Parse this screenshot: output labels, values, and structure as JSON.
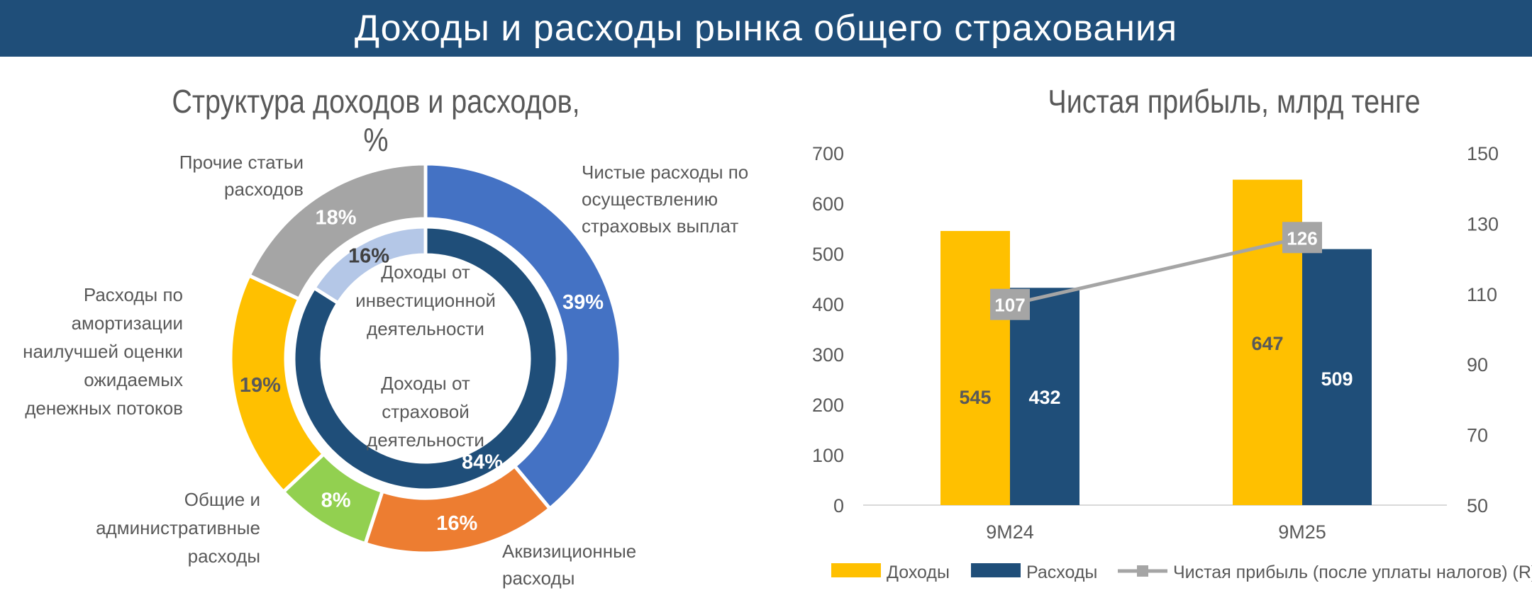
{
  "header": {
    "title": "Доходы и расходы рынка общего страхования"
  },
  "colors": {
    "blue": "#4472c4",
    "orange": "#ed7d31",
    "green": "#92d050",
    "yellow": "#ffc000",
    "gray": "#a5a5a5",
    "navy": "#1f4e79",
    "light_blue": "#b4c7e7"
  },
  "chart_data": [
    {
      "type": "pie",
      "title": "Структура доходов и расходов, %",
      "series": [
        {
          "name": "",
          "ring": "outer",
          "slices": [
            {
              "label": "Чистые расходы по осуществлению страховых выплат",
              "value": 39,
              "value_label": "39%",
              "color": "#4472c4"
            },
            {
              "label": "Аквизиционные расходы",
              "value": 16,
              "value_label": "16%",
              "color": "#ed7d31"
            },
            {
              "label": "Общие и административные расходы",
              "value": 8,
              "value_label": "8%",
              "color": "#92d050"
            },
            {
              "label": "Расходы по амортизации наилучшей оценки ожидаемых денежных потоков",
              "value": 19,
              "value_label": "19%",
              "color": "#ffc000"
            },
            {
              "label": "Прочие статьи расходов",
              "value": 18,
              "value_label": "18%",
              "color": "#a5a5a5"
            }
          ]
        },
        {
          "name": "",
          "ring": "inner",
          "slices": [
            {
              "label": "Доходы от страховой деятельности",
              "value": 84,
              "value_label": "84%",
              "color": "#1f4e79"
            },
            {
              "label": "Доходы от инвестиционной деятельности",
              "value": 16,
              "value_label": "16%",
              "color": "#b4c7e7"
            }
          ]
        }
      ],
      "outer_labels": [
        {
          "lines": [
            "Чистые расходы по",
            "осуществлению",
            "страховых выплат"
          ]
        },
        {
          "lines": [
            "Аквизиционные",
            "расходы"
          ]
        },
        {
          "lines": [
            "Общие и",
            "административные",
            "расходы"
          ]
        },
        {
          "lines": [
            "Расходы по",
            "амортизации",
            "наилучшей оценки",
            "ожидаемых",
            "денежных потоков"
          ]
        },
        {
          "lines": [
            "Прочие статьи",
            "расходов"
          ]
        }
      ],
      "center_labels": [
        {
          "lines": [
            "Доходы от",
            "инвестиционной",
            "деятельности"
          ]
        },
        {
          "lines": [
            "Доходы от",
            "страховой",
            "деятельности"
          ]
        }
      ]
    },
    {
      "type": "bar",
      "title": "Чистая прибыль, млрд тенге",
      "categories": [
        "9M24",
        "9M25"
      ],
      "series": [
        {
          "name": "Доходы",
          "type": "bar",
          "axis": "left",
          "values": [
            545,
            647
          ],
          "labels": [
            "545",
            "647"
          ],
          "color": "#ffc000"
        },
        {
          "name": "Расходы",
          "type": "bar",
          "axis": "left",
          "values": [
            432,
            509
          ],
          "labels": [
            "432",
            "509"
          ],
          "color": "#1f4e79"
        },
        {
          "name": "Чистая прибыль (после уплаты налогов) (R)",
          "type": "line",
          "axis": "right",
          "values": [
            107,
            126
          ],
          "labels": [
            "107",
            "126"
          ],
          "color": "#a5a5a5"
        }
      ],
      "left_axis": {
        "min": 0,
        "max": 700,
        "ticks": [
          "0",
          "100",
          "200",
          "300",
          "400",
          "500",
          "600",
          "700"
        ]
      },
      "right_axis": {
        "min": 50,
        "max": 150,
        "ticks": [
          "50",
          "70",
          "90",
          "110",
          "130",
          "150"
        ]
      },
      "grid": false,
      "legend_position": "bottom"
    }
  ]
}
